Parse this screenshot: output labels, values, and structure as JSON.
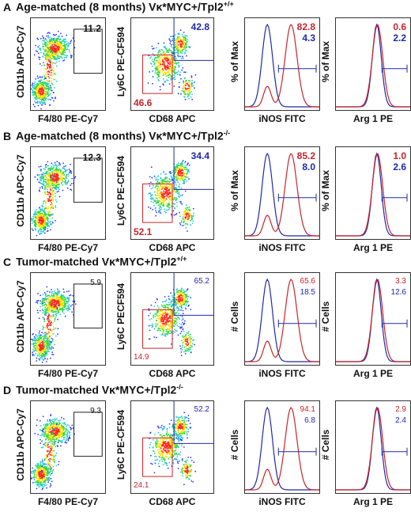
{
  "colors": {
    "red": "#c8252b",
    "blue": "#1f2aa8",
    "dark": "#222222"
  },
  "sections": [
    {
      "letter": "A",
      "title": "Age-matched (8 months) Vκ*MYC+/Tpl2",
      "superscript": "+/+",
      "light": false,
      "scatter1": {
        "xlabel": "F4/80 PE-Cy7",
        "ylabel": "CD11b APC-Cy7",
        "value": "11.2"
      },
      "scatter2": {
        "xlabel": "CD68 APC",
        "ylabel": "Ly6C PE-CF594",
        "value_top": "42.8",
        "value_bottom": "46.6"
      },
      "hist1": {
        "xlabel": "iNOS FITC",
        "ylabel": "% of Max",
        "value_red": "82.8",
        "value_blue": "4.3"
      },
      "hist2": {
        "xlabel": "Arg 1 PE",
        "ylabel": "% of Max",
        "value_red": "0.6",
        "value_blue": "2.2"
      }
    },
    {
      "letter": "B",
      "title": "Age-matched (8 months) Vκ*MYC+/Tpl2",
      "superscript": "-/-",
      "light": false,
      "scatter1": {
        "xlabel": "F4/80 PE-Cy7",
        "ylabel": "CD11b APC-Cy7",
        "value": "12.3"
      },
      "scatter2": {
        "xlabel": "CD68 APC",
        "ylabel": "Ly6C PE-CF594",
        "value_top": "34.4",
        "value_bottom": "52.1"
      },
      "hist1": {
        "xlabel": "iNOS FITC",
        "ylabel": "% of Max",
        "value_red": "85.2",
        "value_blue": "8.0"
      },
      "hist2": {
        "xlabel": "Arg 1 PE",
        "ylabel": "% of Max",
        "value_red": "1.0",
        "value_blue": "2.6"
      }
    },
    {
      "letter": "C",
      "title": "Tumor-matched Vκ*MYC+/Tpl2",
      "superscript": "+/+",
      "light": true,
      "scatter1": {
        "xlabel": "F4/80 PE-Cy7",
        "ylabel": "CD11b APC-Cy7",
        "value": "5.9"
      },
      "scatter2": {
        "xlabel": "CD68 APC",
        "ylabel": "Ly6C PECF594",
        "value_top": "65.2",
        "value_bottom": "14.9"
      },
      "hist1": {
        "xlabel": "iNOS FITC",
        "ylabel": "# Cells",
        "value_red": "65.6",
        "value_blue": "18.5"
      },
      "hist2": {
        "xlabel": "Arg 1 PE",
        "ylabel": "# Cells",
        "value_red": "3.3",
        "value_blue": "12.6"
      }
    },
    {
      "letter": "D",
      "title": "Tumor-matched Vκ*MYC+/Tpl2",
      "superscript": "-/-",
      "light": true,
      "scatter1": {
        "xlabel": "F4/80 PE-Cy7",
        "ylabel": "CD11b APC-Cy7",
        "value": "9.3"
      },
      "scatter2": {
        "xlabel": "CD68 APC",
        "ylabel": "Ly6C PE-CF594",
        "value_top": "52.2",
        "value_bottom": "24.1"
      },
      "hist1": {
        "xlabel": "iNOS FITC",
        "ylabel": "# Cells",
        "value_red": "94.1",
        "value_blue": "6.8"
      },
      "hist2": {
        "xlabel": "Arg 1 PE",
        "ylabel": "# Cells",
        "value_red": "2.9",
        "value_blue": "2.4"
      }
    }
  ]
}
